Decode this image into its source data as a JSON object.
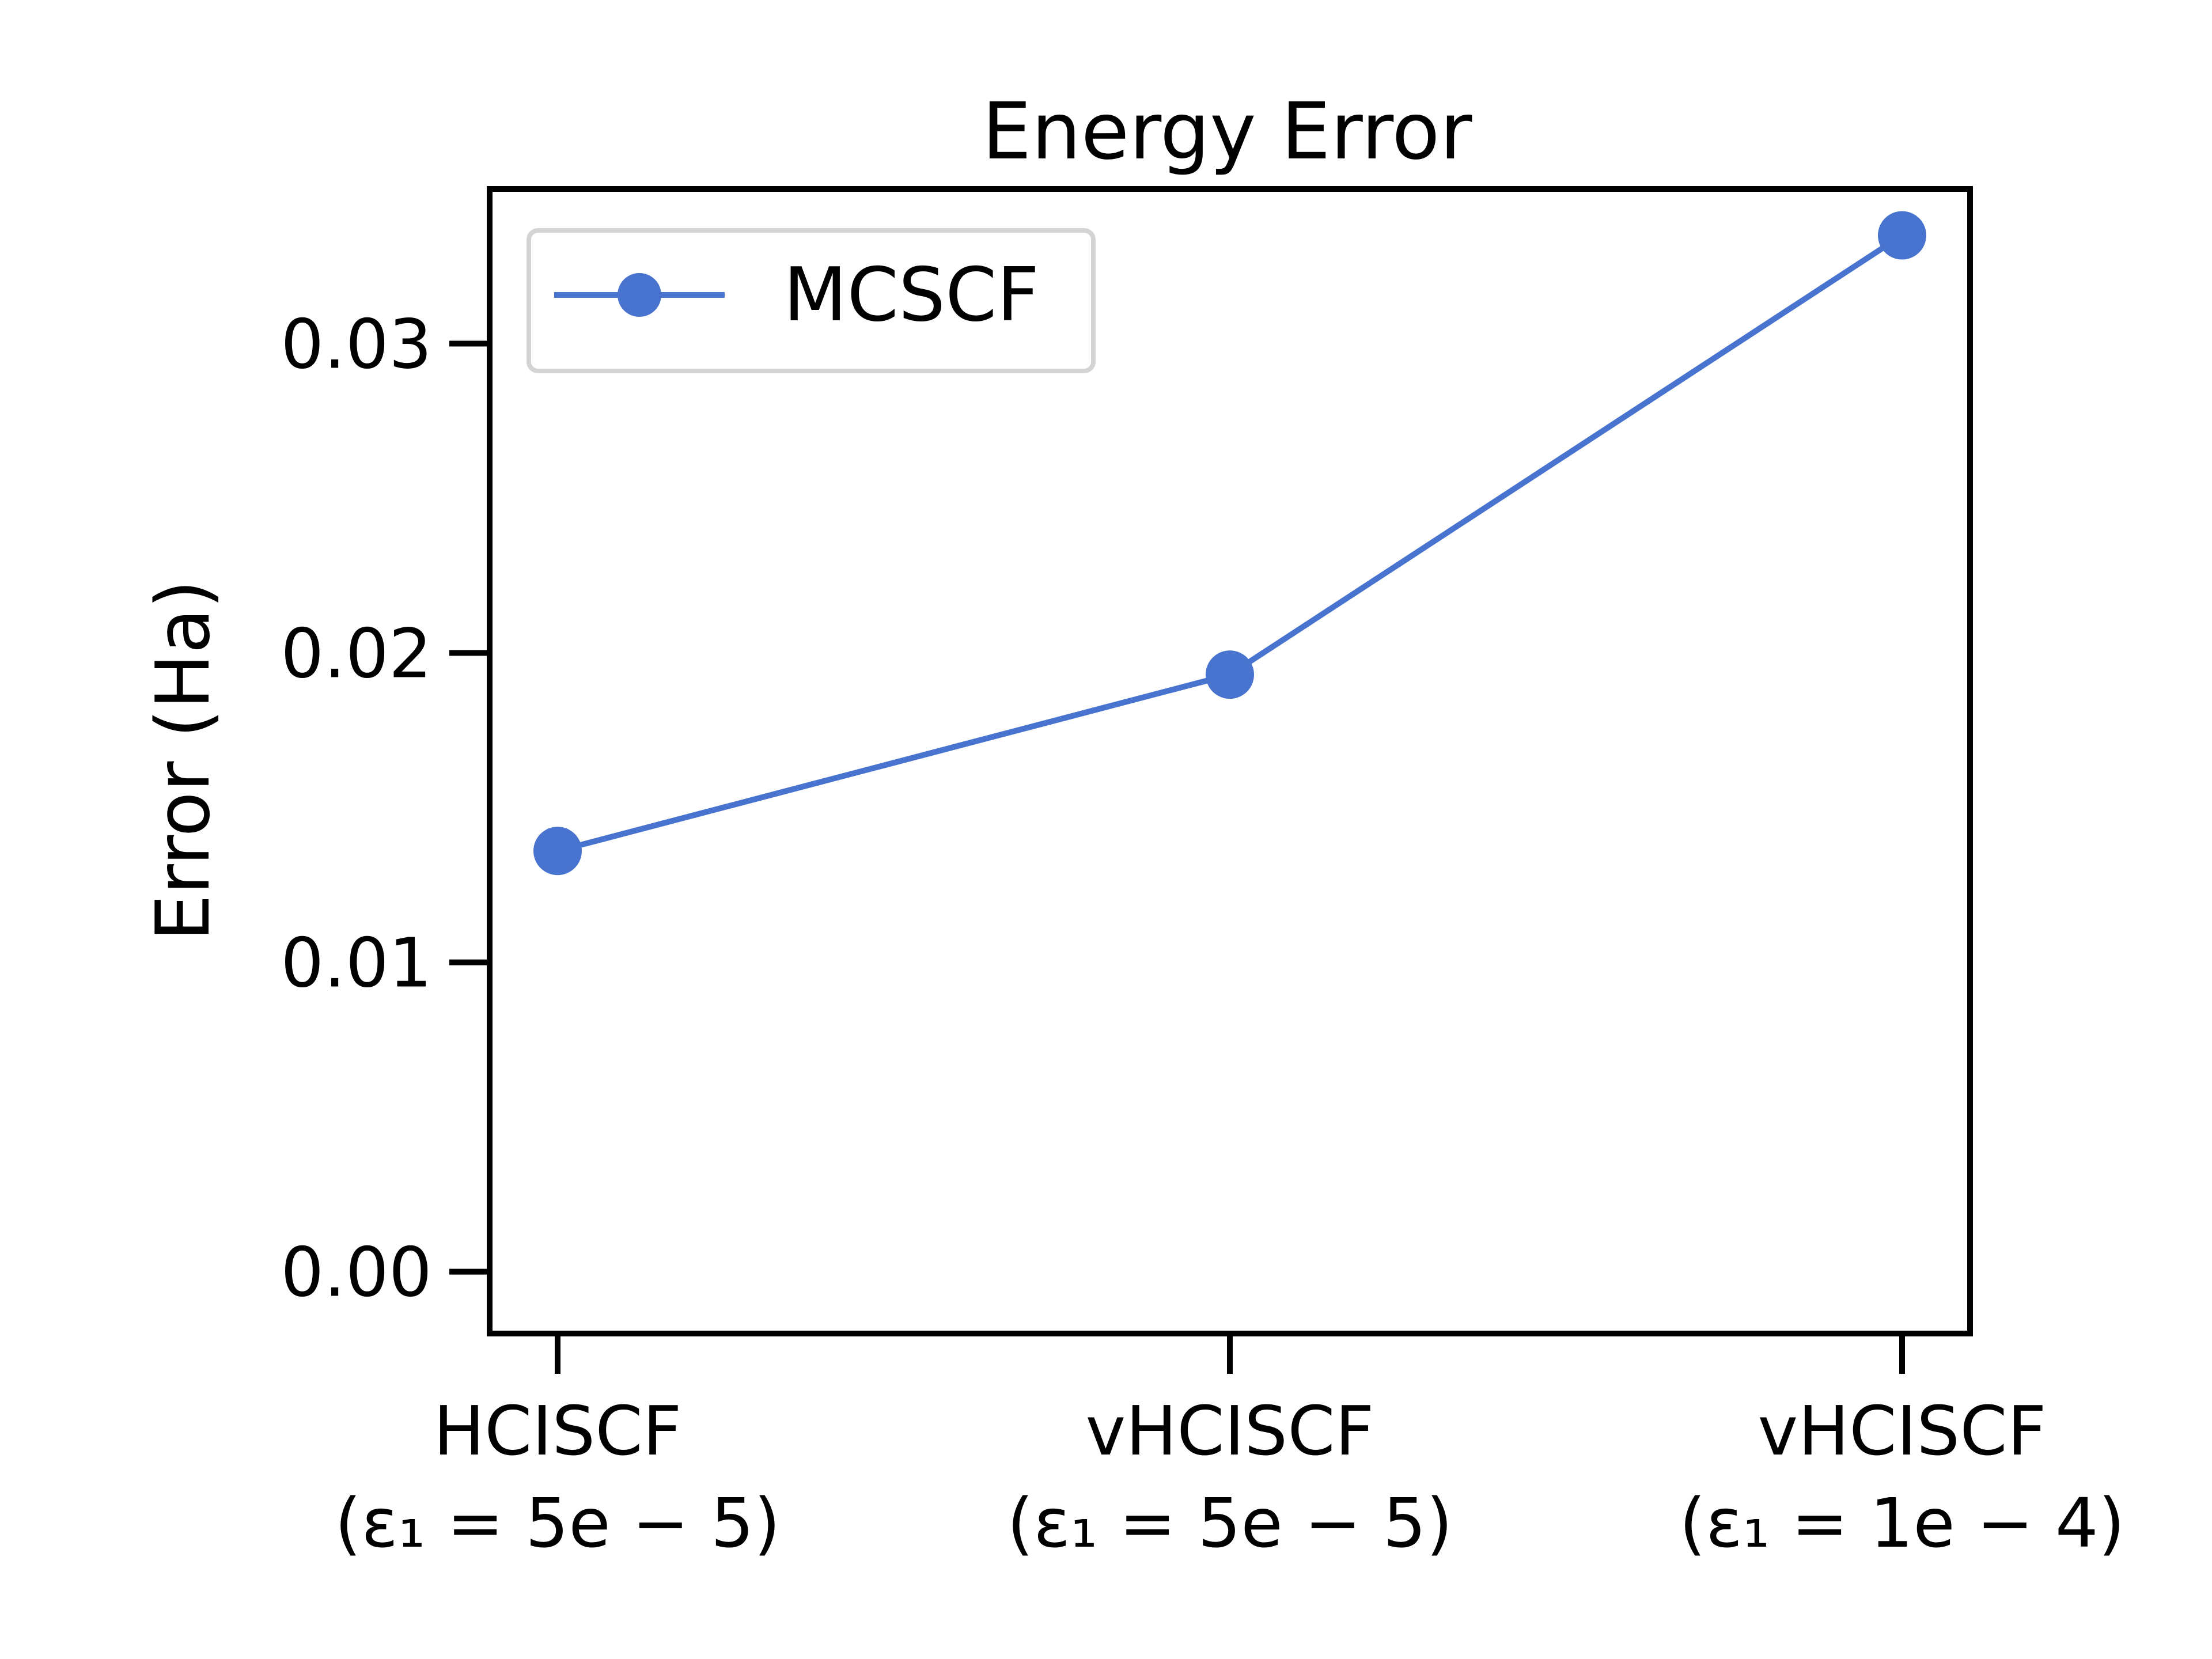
{
  "chart_data": {
    "type": "line",
    "title": "Energy Error",
    "xlabel": "",
    "ylabel": "Error (Ha)",
    "categories": [
      {
        "line1": "HCISCF",
        "line2": "(ε₁ = 5e − 5)"
      },
      {
        "line1": "vHCISCF",
        "line2": "(ε₁ = 5e − 5)"
      },
      {
        "line1": "vHCISCF",
        "line2": "(ε₁ = 1e − 4)"
      }
    ],
    "series": [
      {
        "name": "MCSCF",
        "color": "#4874cf",
        "marker": "circle",
        "values": [
          0.0136,
          0.0193,
          0.0335
        ]
      }
    ],
    "ylim": [
      -0.002,
      0.035
    ],
    "yticks": [
      0.0,
      0.01,
      0.02,
      0.03
    ],
    "ytick_labels": [
      "0.00",
      "0.01",
      "0.02",
      "0.03"
    ],
    "legend_position": "upper-left",
    "grid": false
  }
}
